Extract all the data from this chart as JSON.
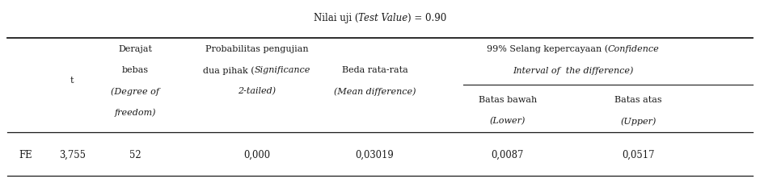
{
  "title_normal1": "Nilai uji (",
  "title_italic": "Test Value",
  "title_normal2": ") = 0.90",
  "col_headers": {
    "t": "t",
    "df_1": "Derajat",
    "df_2": "bebas",
    "df_3": "(Degree of",
    "df_4": "freedom)",
    "prob_1": "Probabilitas pengujian",
    "prob_2a": "dua pihak (",
    "prob_2b": "Significance",
    "prob_3": "2-tailed)",
    "mean_1": "Beda rata-rata",
    "mean_2": "(Mean difference)",
    "ci_1a": "99% Selang kepercayaan (",
    "ci_1b": "Confidence",
    "ci_2": "Interval of  the difference)",
    "lower_1": "Batas bawah",
    "lower_2": "(Lower)",
    "upper_1": "Batas atas",
    "upper_2": "(Upper)"
  },
  "data_row": {
    "label": "FE",
    "t": "3,755",
    "df": "52",
    "prob": "0,000",
    "mean_diff": "0,03019",
    "lower": "0,0087",
    "upper": "0,0517"
  },
  "background_color": "#ffffff",
  "text_color": "#1a1a1a",
  "line_color": "#1a1a1a",
  "font_size": 8.0
}
